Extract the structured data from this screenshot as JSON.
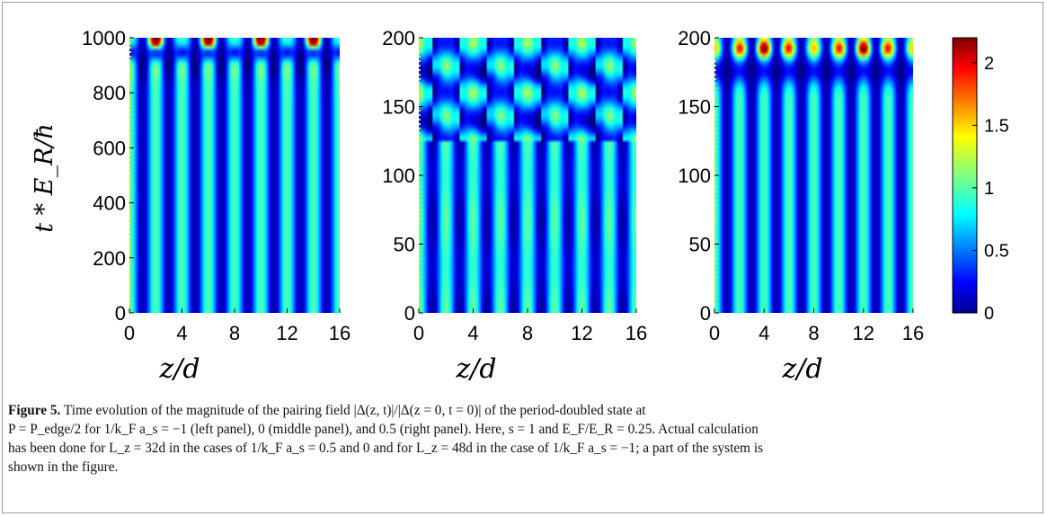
{
  "chart_data": [
    {
      "type": "heatmap",
      "panel": "left",
      "xlabel": "z/d",
      "ylabel": "t * E_R/ħ",
      "x_ticks": [
        "0",
        "4",
        "8",
        "12",
        "16"
      ],
      "y_ticks": [
        "0",
        "200",
        "400",
        "600",
        "800",
        "1000"
      ],
      "xlim": [
        0,
        16
      ],
      "ylim": [
        0,
        1000
      ],
      "stripe_period_z": 1,
      "pattern": "vertical stripes; dark-blue dips near t≈930–960 with red peaks near t≈980–1000 at z≈2,6,10,14"
    },
    {
      "type": "heatmap",
      "panel": "middle",
      "xlabel": "z/d",
      "x_ticks": [
        "0",
        "4",
        "8",
        "12",
        "16"
      ],
      "y_ticks": [
        "0",
        "50",
        "100",
        "150",
        "200"
      ],
      "xlim": [
        0,
        16
      ],
      "ylim": [
        0,
        200
      ],
      "stripe_period_z": 1,
      "pattern": "stripes up to t≈130, then checkerboard of yellow maxima and blue minima with period 4 in z"
    },
    {
      "type": "heatmap",
      "panel": "right",
      "xlabel": "z/d",
      "x_ticks": [
        "0",
        "4",
        "8",
        "12",
        "16"
      ],
      "y_ticks": [
        "0",
        "50",
        "100",
        "150",
        "200"
      ],
      "xlim": [
        0,
        16
      ],
      "ylim": [
        0,
        200
      ],
      "stripe_period_z": 1,
      "pattern": "vertical stripes; blue dips near t≈170–190 and yellow/orange peaks near t≈190–200"
    }
  ],
  "colorbar": {
    "ticks": [
      "0",
      "0.5",
      "1",
      "1.5",
      "2"
    ],
    "range": [
      0,
      2.2
    ],
    "colormap": "jet"
  },
  "colors": {
    "jet_dark_blue": "#00008f",
    "jet_cyan": "#00ffff",
    "jet_yellow": "#ffff00",
    "jet_dark_red": "#800000"
  },
  "caption": {
    "label": "Figure 5.",
    "text_1": "Time evolution of the magnitude of the pairing field |Δ(z, t)|/|Δ(z = 0, t = 0)| of the period-doubled state at",
    "text_2": "P = P_edge/2 for 1/k_F a_s = −1 (left panel), 0 (middle panel), and 0.5 (right panel). Here, s = 1 and E_F/E_R = 0.25. Actual calculation",
    "text_3": "has been done for L_z = 32d in the cases of 1/k_F a_s = 0.5 and 0 and for L_z = 48d in the case of 1/k_F a_s = −1; a part of the system is",
    "text_4": "shown in the figure."
  }
}
